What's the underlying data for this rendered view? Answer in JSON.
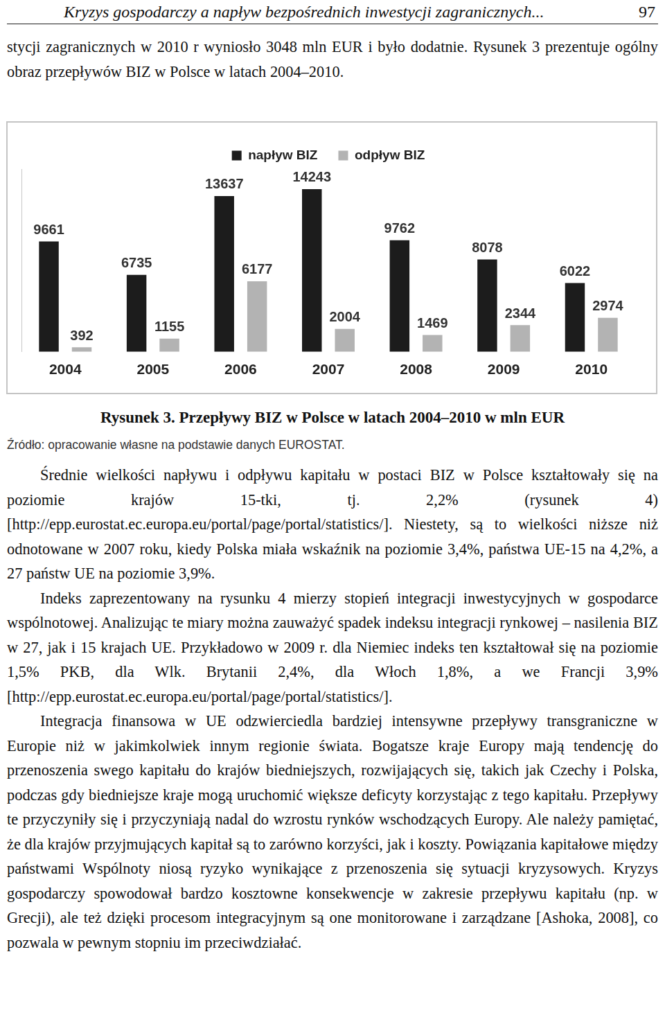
{
  "page": {
    "header": {
      "title": "Kryzys gospodarczy a napływ bezpośrednich inwestycji zagranicznych...",
      "page_number": "97"
    },
    "intro": "stycji zagranicznych w 2010 r wyniosło 3048 mln EUR i było dodatnie. Rysunek 3 prezentuje ogólny obraz przepływów BIZ w Polsce w latach 2004–2010.",
    "caption": "Rysunek 3. Przepływy BIZ w Polsce w latach 2004–2010 w mln EUR",
    "source": "Źródło: opracowanie własne na podstawie danych EUROSTAT.",
    "paragraphs": [
      "Średnie wielkości napływu i odpływu kapitału w postaci BIZ w Polsce kształtowały się na poziomie krajów 15-tki, tj. 2,2% (rysunek 4) [http://epp.eurostat.ec.europa.eu/portal/page/portal/statistics/]. Niestety, są to wielkości niższe niż odnotowane w 2007 roku, kiedy Polska miała wskaźnik na poziomie 3,4%, państwa UE-15 na 4,2%, a 27 państw UE na poziomie 3,9%.",
      "Indeks zaprezentowany na rysunku 4 mierzy stopień integracji inwestycyjnych w gospodarce wspólnotowej. Analizując te miary można zauważyć spadek indeksu integracji rynkowej – nasilenia BIZ w 27, jak i 15 krajach UE. Przykładowo w 2009 r. dla Niemiec indeks ten kształtował się na poziomie 1,5% PKB, dla Wlk. Brytanii 2,4%, dla Włoch 1,8%, a we Francji 3,9% [http://epp.eurostat.ec.europa.eu/portal/page/portal/statistics/].",
      "Integracja finansowa w UE odzwierciedla bardziej intensywne przepływy transgraniczne w Europie niż w jakimkolwiek innym regionie świata. Bogatsze kraje Europy mają tendencję do przenoszenia swego kapitału do krajów biedniejszych, rozwijających się, takich jak Czechy i Polska, podczas gdy biedniejsze kraje mogą uruchomić większe deficyty korzystając z tego kapitału. Przepływy te przyczyniły się i przyczyniają nadal do wzrostu rynków wschodzących Europy. Ale należy pamiętać, że dla krajów przyjmujących kapitał są to zarówno korzyści, jak i koszty. Powiązania kapitałowe między państwami Wspólnoty niosą ryzyko wynikające z przenoszenia się sytuacji kryzysowych. Kryzys gospodarczy spowodował bardzo kosztowne konsekwencje w zakresie przepływu kapitału (np. w Grecji), ale też dzięki procesom integracyjnym są one monitorowane i zarządzane [Ashoka, 2008], co pozwala w pewnym stopniu im przeciwdziałać."
    ]
  },
  "chart_data": {
    "type": "bar",
    "categories": [
      "2004",
      "2005",
      "2006",
      "2007",
      "2008",
      "2009",
      "2010"
    ],
    "series": [
      {
        "name": "napływ BIZ",
        "color": "#1c1c1c",
        "values": [
          9661,
          6735,
          13637,
          14243,
          9762,
          8078,
          6022
        ]
      },
      {
        "name": "odpływ BIZ",
        "color": "#b3b3b3",
        "values": [
          392,
          1155,
          6177,
          2004,
          1469,
          2344,
          2974
        ]
      }
    ],
    "ylim": [
      0,
      16000
    ],
    "grid": false,
    "legend": "top",
    "data_labels": true,
    "tick_labels": "x"
  }
}
